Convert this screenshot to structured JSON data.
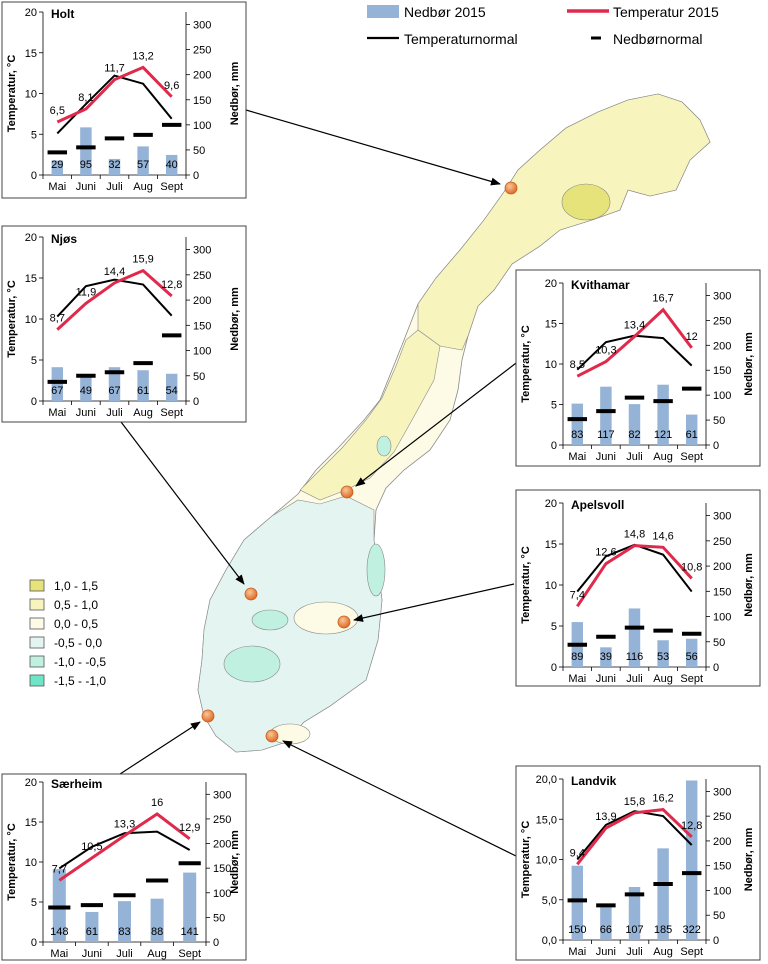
{
  "legend": {
    "nedbor2015": "Nedbør 2015",
    "temp2015": "Temperatur 2015",
    "tempnormal": "Temperaturnormal",
    "nedbornormal": "Nedbørnormal",
    "colors": {
      "bar": "#95b3d7",
      "temp2015": "#e0294b",
      "normal": "#000000"
    }
  },
  "anomaly_legend": {
    "items": [
      {
        "label": "1,0 -  1,5",
        "color": "#e6e37a"
      },
      {
        "label": "0,5 -  1,0",
        "color": "#f7f4bd"
      },
      {
        "label": "0,0 -  0,5",
        "color": "#fdfbe5"
      },
      {
        "label": "-0,5 -  0,0",
        "color": "#e4f5f1"
      },
      {
        "label": "-1,0 - -0,5",
        "color": "#bff0e0"
      },
      {
        "label": "-1,5 - -1,0",
        "color": "#6fe5c8"
      }
    ]
  },
  "map_colors": {
    "water": "#ffffff",
    "coast": "#7f7f7f",
    "station": "#e8803a"
  },
  "chart_data": [
    {
      "type": "bar",
      "title": "Holt",
      "categories": [
        "Mai",
        "Juni",
        "Juli",
        "Aug",
        "Sept"
      ],
      "ylabel": "Temperatur, °C",
      "y2label": "Nedbør, mm",
      "ylim": [
        0,
        20
      ],
      "y2lim": [
        0,
        325
      ],
      "yticks": [
        "0",
        "5",
        "10",
        "15",
        "20"
      ],
      "y2ticks": [
        "0",
        "50",
        "100",
        "150",
        "200",
        "250",
        "300"
      ],
      "series": [
        {
          "name": "Nedbør 2015",
          "type": "bar",
          "axis": "y2",
          "values": [
            29,
            95,
            32,
            57,
            40
          ],
          "labels": [
            "29",
            "95",
            "32",
            "57",
            "40"
          ]
        },
        {
          "name": "Nedbørnormal",
          "type": "marker",
          "axis": "y2",
          "values": [
            45,
            55,
            73,
            80,
            100
          ]
        },
        {
          "name": "Temperaturnormal",
          "type": "line",
          "axis": "y",
          "values": [
            5.1,
            8.7,
            12.2,
            11.2,
            6.9
          ]
        },
        {
          "name": "Temperatur 2015",
          "type": "line",
          "axis": "y",
          "values": [
            6.5,
            8.1,
            11.7,
            13.2,
            9.6
          ],
          "labels": [
            "6,5",
            "8,1",
            "11,7",
            "13,2",
            "9,6"
          ]
        }
      ]
    },
    {
      "type": "bar",
      "title": "Njøs",
      "categories": [
        "Mai",
        "Juni",
        "Juli",
        "Aug",
        "Sept"
      ],
      "ylabel": "Temperatur, °C",
      "y2label": "Nedbør, mm",
      "ylim": [
        0,
        20
      ],
      "y2lim": [
        0,
        325
      ],
      "yticks": [
        "0",
        "5",
        "10",
        "15",
        "20"
      ],
      "y2ticks": [
        "0",
        "50",
        "100",
        "150",
        "200",
        "250",
        "300"
      ],
      "series": [
        {
          "name": "Nedbør 2015",
          "type": "bar",
          "axis": "y2",
          "values": [
            67,
            49,
            67,
            61,
            54
          ],
          "labels": [
            "67",
            "49",
            "67",
            "61",
            "54"
          ]
        },
        {
          "name": "Nedbørnormal",
          "type": "marker",
          "axis": "y2",
          "values": [
            38,
            50,
            57,
            75,
            130
          ]
        },
        {
          "name": "Temperaturnormal",
          "type": "line",
          "axis": "y",
          "values": [
            10.3,
            14.0,
            14.8,
            14.2,
            10.4
          ]
        },
        {
          "name": "Temperatur 2015",
          "type": "line",
          "axis": "y",
          "values": [
            8.7,
            11.9,
            14.4,
            15.9,
            12.8
          ],
          "labels": [
            "8,7",
            "11,9",
            "14,4",
            "15,9",
            "12,8"
          ]
        }
      ]
    },
    {
      "type": "bar",
      "title": "Kvithamar",
      "categories": [
        "Mai",
        "Juni",
        "Juli",
        "Aug",
        "Sept"
      ],
      "ylabel": "Temperatur, °C",
      "y2label": "Nedbør, mm",
      "ylim": [
        0,
        20
      ],
      "y2lim": [
        0,
        325
      ],
      "yticks": [
        "0",
        "5",
        "10",
        "15",
        "20"
      ],
      "y2ticks": [
        "0",
        "50",
        "100",
        "150",
        "200",
        "250",
        "300"
      ],
      "series": [
        {
          "name": "Nedbør 2015",
          "type": "bar",
          "axis": "y2",
          "values": [
            83,
            117,
            82,
            121,
            61
          ],
          "labels": [
            "83",
            "117",
            "82",
            "121",
            "61"
          ]
        },
        {
          "name": "Nedbørnormal",
          "type": "marker",
          "axis": "y2",
          "values": [
            52,
            68,
            95,
            88,
            113
          ]
        },
        {
          "name": "Temperaturnormal",
          "type": "line",
          "axis": "y",
          "values": [
            9.3,
            12.7,
            13.5,
            13.2,
            9.8
          ]
        },
        {
          "name": "Temperatur 2015",
          "type": "line",
          "axis": "y",
          "values": [
            8.5,
            10.3,
            13.4,
            16.7,
            12.0
          ],
          "labels": [
            "8,5",
            "10,3",
            "13,4",
            "16,7",
            "12"
          ]
        }
      ]
    },
    {
      "type": "bar",
      "title": "Apelsvoll",
      "categories": [
        "Mai",
        "Juni",
        "Juli",
        "Aug",
        "Sept"
      ],
      "ylabel": "Temperatur, °C",
      "y2label": "Nedbør, mm",
      "ylim": [
        0,
        20
      ],
      "y2lim": [
        0,
        325
      ],
      "yticks": [
        "0",
        "5",
        "10",
        "15",
        "20"
      ],
      "y2ticks": [
        "0",
        "50",
        "100",
        "150",
        "200",
        "250",
        "300"
      ],
      "series": [
        {
          "name": "Nedbør 2015",
          "type": "bar",
          "axis": "y2",
          "values": [
            89,
            39,
            116,
            53,
            56
          ],
          "labels": [
            "89",
            "39",
            "116",
            "53",
            "56"
          ]
        },
        {
          "name": "Nedbørnormal",
          "type": "marker",
          "axis": "y2",
          "values": [
            44,
            60,
            78,
            72,
            66
          ]
        },
        {
          "name": "Temperaturnormal",
          "type": "line",
          "axis": "y",
          "values": [
            9.2,
            13.5,
            14.9,
            13.7,
            9.2
          ]
        },
        {
          "name": "Temperatur 2015",
          "type": "line",
          "axis": "y",
          "values": [
            7.4,
            12.6,
            14.8,
            14.6,
            10.8
          ],
          "labels": [
            "7,4",
            "12,6",
            "14,8",
            "14,6",
            "10,8"
          ]
        }
      ]
    },
    {
      "type": "bar",
      "title": "Særheim",
      "categories": [
        "Mai",
        "Juni",
        "Juli",
        "Aug",
        "Sept"
      ],
      "ylabel": "Temperatur, °C",
      "y2label": "Nedbør, mm",
      "ylim": [
        0,
        20
      ],
      "y2lim": [
        0,
        325
      ],
      "yticks": [
        "0",
        "5",
        "10",
        "15",
        "20"
      ],
      "y2ticks": [
        "0",
        "50",
        "100",
        "150",
        "200",
        "250",
        "300"
      ],
      "series": [
        {
          "name": "Nedbør 2015",
          "type": "bar",
          "axis": "y2",
          "values": [
            148,
            61,
            83,
            88,
            141
          ],
          "labels": [
            "148",
            "61",
            "83",
            "88",
            "141"
          ]
        },
        {
          "name": "Nedbørnormal",
          "type": "marker",
          "axis": "y2",
          "values": [
            70,
            75,
            95,
            125,
            160
          ]
        },
        {
          "name": "Temperaturnormal",
          "type": "line",
          "axis": "y",
          "values": [
            9.2,
            11.9,
            13.6,
            13.8,
            11.5
          ]
        },
        {
          "name": "Temperatur 2015",
          "type": "line",
          "axis": "y",
          "values": [
            7.7,
            10.5,
            13.3,
            16.0,
            12.9
          ],
          "labels": [
            "7,7",
            "10,5",
            "13,3",
            "16",
            "12,9"
          ]
        }
      ]
    },
    {
      "type": "bar",
      "title": "Landvik",
      "categories": [
        "Mai",
        "Juni",
        "Juli",
        "Aug",
        "Sept"
      ],
      "ylabel": "Temperatur, °C",
      "y2label": "Nedbør, mm",
      "ylim": [
        0,
        20
      ],
      "y2lim": [
        0,
        325
      ],
      "yticks": [
        "0,0",
        "5,0",
        "10,0",
        "15,0",
        "20,0"
      ],
      "y2ticks": [
        "0",
        "50",
        "100",
        "150",
        "200",
        "250",
        "300"
      ],
      "series": [
        {
          "name": "Nedbør 2015",
          "type": "bar",
          "axis": "y2",
          "values": [
            150,
            66,
            107,
            185,
            322
          ],
          "labels": [
            "150",
            "66",
            "107",
            "185",
            "322"
          ]
        },
        {
          "name": "Nedbørnormal",
          "type": "marker",
          "axis": "y2",
          "values": [
            80,
            70,
            92,
            113,
            135
          ]
        },
        {
          "name": "Temperaturnormal",
          "type": "line",
          "axis": "y",
          "values": [
            10.0,
            14.3,
            16.0,
            15.4,
            11.8
          ]
        },
        {
          "name": "Temperatur 2015",
          "type": "line",
          "axis": "y",
          "values": [
            9.4,
            13.9,
            15.8,
            16.2,
            12.8
          ],
          "labels": [
            "9,4",
            "13,9",
            "15,8",
            "16,2",
            "12,8"
          ]
        }
      ]
    }
  ]
}
